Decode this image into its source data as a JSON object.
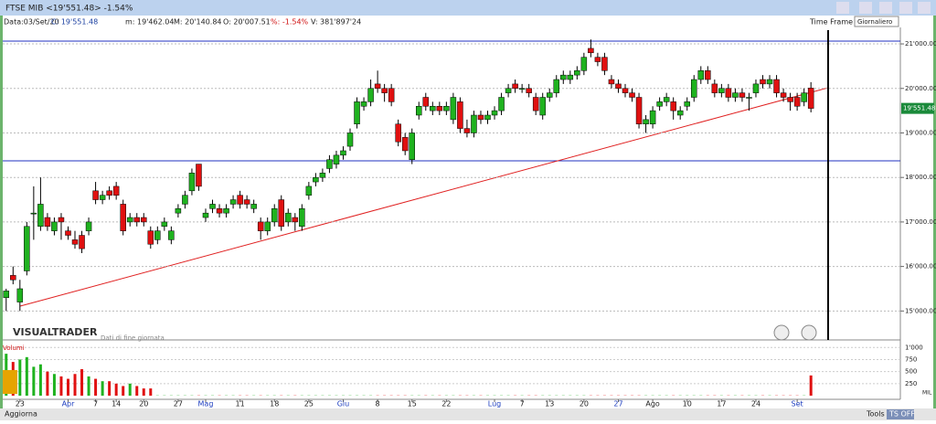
{
  "window": {
    "title": "FTSE MIB <19'551.48> -1.54%",
    "time_frame_label": "Time Frame",
    "time_frame": "Giornaliero"
  },
  "info_bar": {
    "date": "Data:03/Set/20",
    "close": "C: 19'551.48",
    "min": "m: 19'462.04",
    "max": "M: 20'140.84",
    "open": "O: 20'007.51",
    "pct": "%: -1.54%",
    "volume": "V: 381'897'24"
  },
  "brand": {
    "name": "VISUALTRADER",
    "note": "Dati di fine giornata"
  },
  "volume_panel": {
    "title": "Volumi",
    "market": "MIL"
  },
  "toolbar": {
    "update": "Aggiorna",
    "tools": "Tools",
    "ts": "TS OFF"
  },
  "chart_data": {
    "type": "candlestick",
    "last_price_label": "19'551.48",
    "xlim": [
      -0.5,
      130
    ],
    "ylim": [
      14350,
      21350
    ],
    "yticks": [
      {
        "value": 15000,
        "label": "15'000.00"
      },
      {
        "value": 16000,
        "label": "16'000.00"
      },
      {
        "value": 17000,
        "label": "17'000.00"
      },
      {
        "value": 18000,
        "label": "18'000.00"
      },
      {
        "value": 19000,
        "label": "19'000.00"
      },
      {
        "value": 20000,
        "label": "20'000.00"
      },
      {
        "value": 21000,
        "label": "21'000.00"
      }
    ],
    "xticks": [
      {
        "value": 2,
        "label": "23"
      },
      {
        "value": 9,
        "label": "Apr"
      },
      {
        "value": 13,
        "label": "7"
      },
      {
        "value": 16,
        "label": "14"
      },
      {
        "value": 20,
        "label": "20"
      },
      {
        "value": 25,
        "label": "27"
      },
      {
        "value": 29,
        "label": "Mag"
      },
      {
        "value": 34,
        "label": "11"
      },
      {
        "value": 39,
        "label": "18"
      },
      {
        "value": 44,
        "label": "25"
      },
      {
        "value": 49,
        "label": "Giu"
      },
      {
        "value": 54,
        "label": "8"
      },
      {
        "value": 59,
        "label": "15"
      },
      {
        "value": 64,
        "label": "22"
      },
      {
        "value": 71,
        "label": "Lug"
      },
      {
        "value": 75,
        "label": "7"
      },
      {
        "value": 79,
        "label": "13"
      },
      {
        "value": 84,
        "label": "20"
      },
      {
        "value": 89,
        "label": "27"
      },
      {
        "value": 94,
        "label": "Ago"
      },
      {
        "value": 99,
        "label": "10"
      },
      {
        "value": 104,
        "label": "17"
      },
      {
        "value": 109,
        "label": "24"
      },
      {
        "value": 115,
        "label": "Set"
      }
    ],
    "month_ticks": [
      1,
      6,
      10,
      14,
      18,
      23
    ],
    "up_color": "#1fb21f",
    "down_color": "#e01010",
    "candles": [
      [
        15300,
        15500,
        15000,
        15450
      ],
      [
        15800,
        16000,
        15600,
        15700
      ],
      [
        15200,
        15700,
        15000,
        15500
      ],
      [
        15900,
        17000,
        15800,
        16900
      ],
      [
        17200,
        17800,
        16600,
        17200
      ],
      [
        16900,
        18000,
        16800,
        17400
      ],
      [
        17100,
        17200,
        16800,
        16900
      ],
      [
        16800,
        17100,
        16700,
        17000
      ],
      [
        17100,
        17200,
        16600,
        17000
      ],
      [
        16800,
        16900,
        16600,
        16700
      ],
      [
        16600,
        16800,
        16400,
        16500
      ],
      [
        16700,
        16800,
        16300,
        16400
      ],
      [
        16800,
        17100,
        16700,
        17000
      ],
      [
        17700,
        17900,
        17400,
        17500
      ],
      [
        17500,
        17700,
        17400,
        17600
      ],
      [
        17700,
        17800,
        17500,
        17600
      ],
      [
        17800,
        17900,
        17500,
        17600
      ],
      [
        17400,
        17500,
        16700,
        16800
      ],
      [
        17000,
        17200,
        16900,
        17100
      ],
      [
        17100,
        17200,
        16900,
        17000
      ],
      [
        17100,
        17200,
        16900,
        17000
      ],
      [
        16800,
        16900,
        16400,
        16500
      ],
      [
        16600,
        16900,
        16500,
        16800
      ],
      [
        16900,
        17100,
        16800,
        17000
      ],
      [
        16600,
        16900,
        16500,
        16800
      ],
      [
        17200,
        17400,
        17100,
        17300
      ],
      [
        17400,
        17700,
        17300,
        17600
      ],
      [
        17700,
        18200,
        17600,
        18100
      ],
      [
        18300,
        18300,
        17700,
        17800
      ],
      [
        17100,
        17300,
        17000,
        17200
      ],
      [
        17300,
        17500,
        17200,
        17400
      ],
      [
        17300,
        17400,
        17100,
        17200
      ],
      [
        17200,
        17400,
        17100,
        17300
      ],
      [
        17400,
        17600,
        17300,
        17500
      ],
      [
        17600,
        17700,
        17300,
        17400
      ],
      [
        17500,
        17600,
        17300,
        17400
      ],
      [
        17300,
        17500,
        17200,
        17400
      ],
      [
        17000,
        17100,
        16600,
        16800
      ],
      [
        16800,
        17100,
        16700,
        17000
      ],
      [
        17000,
        17400,
        16900,
        17300
      ],
      [
        17500,
        17600,
        16800,
        16900
      ],
      [
        17000,
        17300,
        16900,
        17200
      ],
      [
        17100,
        17200,
        16800,
        17000
      ],
      [
        16900,
        17400,
        16800,
        17300
      ],
      [
        17600,
        17900,
        17500,
        17800
      ],
      [
        17900,
        18100,
        17800,
        18000
      ],
      [
        18000,
        18200,
        17900,
        18100
      ],
      [
        18200,
        18500,
        18100,
        18400
      ],
      [
        18300,
        18600,
        18200,
        18500
      ],
      [
        18500,
        18700,
        18400,
        18600
      ],
      [
        18700,
        19100,
        18600,
        19000
      ],
      [
        19200,
        19800,
        19100,
        19700
      ],
      [
        19600,
        19800,
        19500,
        19700
      ],
      [
        19700,
        20200,
        19600,
        20000
      ],
      [
        20100,
        20400,
        19900,
        20000
      ],
      [
        20000,
        20100,
        19700,
        19900
      ],
      [
        20000,
        20100,
        19600,
        19700
      ],
      [
        19200,
        19300,
        18700,
        18800
      ],
      [
        18900,
        19000,
        18500,
        18600
      ],
      [
        18400,
        19100,
        18300,
        19000
      ],
      [
        19400,
        19700,
        19300,
        19600
      ],
      [
        19800,
        19900,
        19500,
        19600
      ],
      [
        19500,
        19700,
        19400,
        19600
      ],
      [
        19600,
        19700,
        19400,
        19500
      ],
      [
        19500,
        19700,
        19400,
        19600
      ],
      [
        19300,
        19900,
        19200,
        19800
      ],
      [
        19700,
        19800,
        19000,
        19100
      ],
      [
        19100,
        19300,
        18900,
        19000
      ],
      [
        19000,
        19500,
        18900,
        19400
      ],
      [
        19400,
        19500,
        19200,
        19300
      ],
      [
        19300,
        19500,
        19200,
        19400
      ],
      [
        19400,
        19600,
        19300,
        19500
      ],
      [
        19500,
        19900,
        19400,
        19800
      ],
      [
        19900,
        20100,
        19800,
        20000
      ],
      [
        20100,
        20200,
        19900,
        20000
      ],
      [
        20000,
        20100,
        19900,
        20000
      ],
      [
        20000,
        20100,
        19800,
        19900
      ],
      [
        19800,
        19900,
        19400,
        19500
      ],
      [
        19400,
        19900,
        19300,
        19800
      ],
      [
        19800,
        20000,
        19700,
        19900
      ],
      [
        19900,
        20300,
        19800,
        20200
      ],
      [
        20200,
        20400,
        20100,
        20300
      ],
      [
        20200,
        20400,
        20100,
        20300
      ],
      [
        20300,
        20500,
        20200,
        20400
      ],
      [
        20400,
        20800,
        20300,
        20700
      ],
      [
        20900,
        21100,
        20700,
        20800
      ],
      [
        20700,
        20800,
        20500,
        20600
      ],
      [
        20700,
        20800,
        20300,
        20400
      ],
      [
        20200,
        20300,
        20000,
        20100
      ],
      [
        20100,
        20200,
        19900,
        20000
      ],
      [
        20000,
        20100,
        19800,
        19900
      ],
      [
        19900,
        20000,
        19700,
        19800
      ],
      [
        19800,
        19900,
        19100,
        19200
      ],
      [
        19200,
        19400,
        19000,
        19300
      ],
      [
        19200,
        19600,
        19100,
        19500
      ],
      [
        19600,
        19800,
        19500,
        19700
      ],
      [
        19700,
        19900,
        19600,
        19800
      ],
      [
        19700,
        19800,
        19300,
        19500
      ],
      [
        19400,
        19600,
        19300,
        19500
      ],
      [
        19600,
        19800,
        19500,
        19700
      ],
      [
        19800,
        20300,
        19700,
        20200
      ],
      [
        20200,
        20500,
        20100,
        20400
      ],
      [
        20400,
        20500,
        20100,
        20200
      ],
      [
        20100,
        20200,
        19800,
        19900
      ],
      [
        19900,
        20100,
        19800,
        20000
      ],
      [
        20000,
        20100,
        19700,
        19800
      ],
      [
        19800,
        20000,
        19700,
        19900
      ],
      [
        19900,
        20000,
        19700,
        19800
      ],
      [
        19800,
        19900,
        19500,
        19800
      ],
      [
        19900,
        20200,
        19800,
        20100
      ],
      [
        20200,
        20300,
        20000,
        20100
      ],
      [
        20100,
        20300,
        20000,
        20200
      ],
      [
        20200,
        20300,
        19800,
        19900
      ],
      [
        19900,
        20000,
        19700,
        19800
      ],
      [
        19800,
        19900,
        19500,
        19700
      ],
      [
        19800,
        19900,
        19500,
        19600
      ],
      [
        19700,
        20000,
        19600,
        19900
      ],
      [
        20007.51,
        20140.84,
        19462.04,
        19551.48
      ]
    ],
    "volume_ylim": [
      0,
      1100
    ],
    "volume_ticks": [
      {
        "value": 1000,
        "label": "1'000"
      },
      750,
      500,
      250
    ],
    "volumes": [
      870,
      700,
      750,
      800,
      600,
      650,
      500,
      450,
      400,
      350,
      450,
      550,
      400,
      350,
      300,
      300,
      250,
      200,
      250,
      200,
      150,
      150,
      5,
      5,
      5,
      5,
      5,
      5,
      5,
      5,
      5,
      5,
      5,
      5,
      5,
      5,
      5,
      5,
      5,
      5,
      5,
      5,
      5,
      5,
      5,
      5,
      5,
      5,
      5,
      5,
      5,
      5,
      5,
      5,
      5,
      5,
      5,
      5,
      5,
      5,
      5,
      5,
      5,
      5,
      5,
      5,
      5,
      5,
      5,
      5,
      5,
      5,
      5,
      5,
      5,
      5,
      5,
      5,
      5,
      5,
      5,
      5,
      5,
      5,
      5,
      5,
      5,
      5,
      5,
      5,
      5,
      5,
      5,
      5,
      5,
      5,
      5,
      5,
      5,
      5,
      5,
      5,
      5,
      5,
      5,
      5,
      5,
      5,
      5,
      5,
      5,
      5,
      5,
      5,
      5,
      5,
      5,
      420
    ]
  }
}
